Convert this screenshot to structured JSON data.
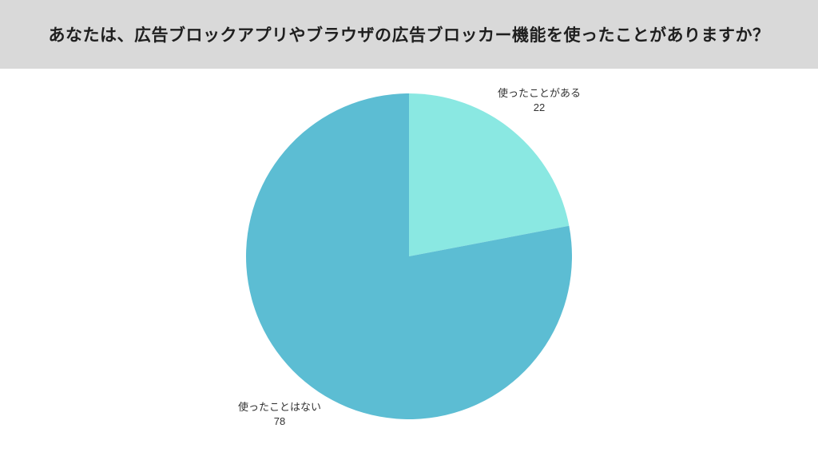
{
  "header": {
    "title": "あなたは、広告ブロックアプリやブラウザの広告ブロッカー機能を使ったことがありますか？",
    "background": "#d9d9d9",
    "text_color": "#1f1f1f"
  },
  "chart_data": {
    "type": "pie",
    "title": "あなたは、広告ブロックアプリやブラウザの広告ブロッカー機能を使ったことがありますか？",
    "categories": [
      "使ったことがある",
      "使ったことはない"
    ],
    "values": [
      22,
      78
    ],
    "colors": [
      "#8ae8e2",
      "#5cbdd3"
    ],
    "start_angle": "top",
    "direction": "clockwise",
    "legend": "none",
    "label_color": "#333333",
    "background": "#ffffff"
  }
}
